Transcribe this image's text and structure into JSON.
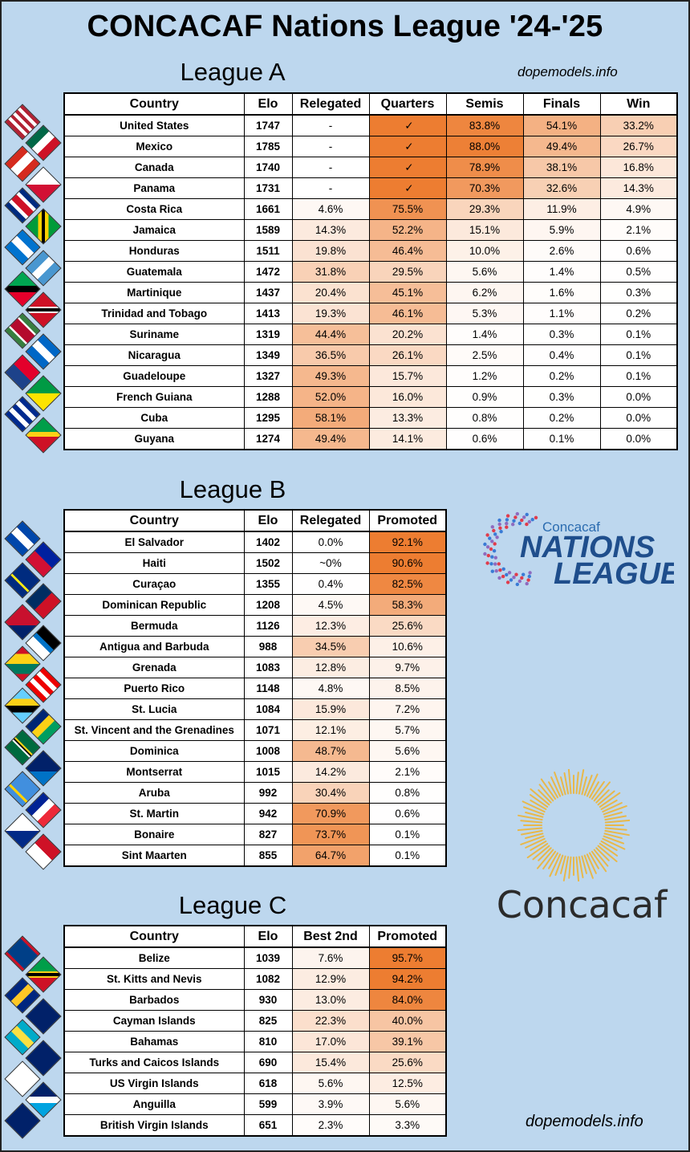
{
  "title": "CONCACAF Nations League '24-'25",
  "site_top": "dopemodels.info",
  "site_bottom": "dopemodels.info",
  "league_a": {
    "title": "League A",
    "headers": [
      "Country",
      "Elo",
      "Relegated",
      "Quarters",
      "Semis",
      "Finals",
      "Win"
    ],
    "rows": [
      [
        "United States",
        "1747",
        "-",
        "✓",
        "83.8%",
        "54.1%",
        "33.2%"
      ],
      [
        "Mexico",
        "1785",
        "-",
        "✓",
        "88.0%",
        "49.4%",
        "26.7%"
      ],
      [
        "Canada",
        "1740",
        "-",
        "✓",
        "78.9%",
        "38.1%",
        "16.8%"
      ],
      [
        "Panama",
        "1731",
        "-",
        "✓",
        "70.3%",
        "32.6%",
        "14.3%"
      ],
      [
        "Costa Rica",
        "1661",
        "4.6%",
        "75.5%",
        "29.3%",
        "11.9%",
        "4.9%"
      ],
      [
        "Jamaica",
        "1589",
        "14.3%",
        "52.2%",
        "15.1%",
        "5.9%",
        "2.1%"
      ],
      [
        "Honduras",
        "1511",
        "19.8%",
        "46.4%",
        "10.0%",
        "2.6%",
        "0.6%"
      ],
      [
        "Guatemala",
        "1472",
        "31.8%",
        "29.5%",
        "5.6%",
        "1.4%",
        "0.5%"
      ],
      [
        "Martinique",
        "1437",
        "20.4%",
        "45.1%",
        "6.2%",
        "1.6%",
        "0.3%"
      ],
      [
        "Trinidad and Tobago",
        "1413",
        "19.3%",
        "46.1%",
        "5.3%",
        "1.1%",
        "0.2%"
      ],
      [
        "Suriname",
        "1319",
        "44.4%",
        "20.2%",
        "1.4%",
        "0.3%",
        "0.1%"
      ],
      [
        "Nicaragua",
        "1349",
        "36.5%",
        "26.1%",
        "2.5%",
        "0.4%",
        "0.1%"
      ],
      [
        "Guadeloupe",
        "1327",
        "49.3%",
        "15.7%",
        "1.2%",
        "0.2%",
        "0.1%"
      ],
      [
        "French Guiana",
        "1288",
        "52.0%",
        "16.0%",
        "0.9%",
        "0.3%",
        "0.0%"
      ],
      [
        "Cuba",
        "1295",
        "58.1%",
        "13.3%",
        "0.8%",
        "0.2%",
        "0.0%"
      ],
      [
        "Guyana",
        "1274",
        "49.4%",
        "14.1%",
        "0.6%",
        "0.1%",
        "0.0%"
      ]
    ]
  },
  "league_b": {
    "title": "League B",
    "headers": [
      "Country",
      "Elo",
      "Relegated",
      "Promoted"
    ],
    "rows": [
      [
        "El Salvador",
        "1402",
        "0.0%",
        "92.1%"
      ],
      [
        "Haiti",
        "1502",
        "~0%",
        "90.6%"
      ],
      [
        "Curaçao",
        "1355",
        "0.4%",
        "82.5%"
      ],
      [
        "Dominican Republic",
        "1208",
        "4.5%",
        "58.3%"
      ],
      [
        "Bermuda",
        "1126",
        "12.3%",
        "25.6%"
      ],
      [
        "Antigua and Barbuda",
        "988",
        "34.5%",
        "10.6%"
      ],
      [
        "Grenada",
        "1083",
        "12.8%",
        "9.7%"
      ],
      [
        "Puerto Rico",
        "1148",
        "4.8%",
        "8.5%"
      ],
      [
        "St. Lucia",
        "1084",
        "15.9%",
        "7.2%"
      ],
      [
        "St. Vincent and the Grenadines",
        "1071",
        "12.1%",
        "5.7%"
      ],
      [
        "Dominica",
        "1008",
        "48.7%",
        "5.6%"
      ],
      [
        "Montserrat",
        "1015",
        "14.2%",
        "2.1%"
      ],
      [
        "Aruba",
        "992",
        "30.4%",
        "0.8%"
      ],
      [
        "St. Martin",
        "942",
        "70.9%",
        "0.6%"
      ],
      [
        "Bonaire",
        "827",
        "73.7%",
        "0.1%"
      ],
      [
        "Sint Maarten",
        "855",
        "64.7%",
        "0.1%"
      ]
    ]
  },
  "league_c": {
    "title": "League C",
    "headers": [
      "Country",
      "Elo",
      "Best 2nd",
      "Promoted"
    ],
    "rows": [
      [
        "Belize",
        "1039",
        "7.6%",
        "95.7%"
      ],
      [
        "St. Kitts and Nevis",
        "1082",
        "12.9%",
        "94.2%"
      ],
      [
        "Barbados",
        "930",
        "13.0%",
        "84.0%"
      ],
      [
        "Cayman Islands",
        "825",
        "22.3%",
        "40.0%"
      ],
      [
        "Bahamas",
        "810",
        "17.0%",
        "39.1%"
      ],
      [
        "Turks and Caicos Islands",
        "690",
        "15.4%",
        "25.6%"
      ],
      [
        "US Virgin Islands",
        "618",
        "5.6%",
        "12.5%"
      ],
      [
        "Anguilla",
        "599",
        "3.9%",
        "5.6%"
      ],
      [
        "British Virgin Islands",
        "651",
        "2.3%",
        "3.3%"
      ]
    ]
  },
  "logos": {
    "nations_small": "Concacaf",
    "nations_line1": "NATIONS",
    "nations_line2": "LEAGUE",
    "wordmark": "Concacaf"
  },
  "colors": {
    "background": "#bdd7ee",
    "heat_max": "#ed7d31",
    "heat_min": "#ffffff"
  }
}
